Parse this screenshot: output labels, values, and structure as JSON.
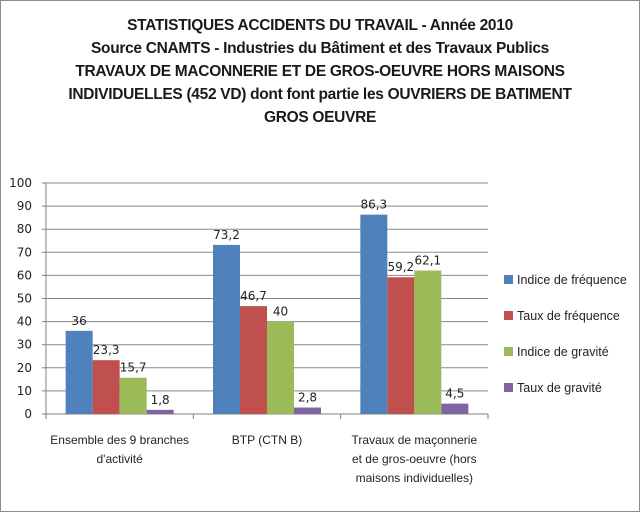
{
  "chart_data": {
    "type": "bar",
    "title_lines": [
      "STATISTIQUES ACCIDENTS DU TRAVAIL - Année 2010",
      "Source CNAMTS - Industries du Bâtiment et des Travaux Publics",
      "TRAVAUX DE MACONNERIE ET DE GROS-OEUVRE HORS MAISONS",
      "INDIVIDUELLES (452 VD) dont font partie les OUVRIERS DE BATIMENT",
      "GROS OEUVRE"
    ],
    "categories": [
      [
        "Ensemble des 9 branches",
        "d'activité"
      ],
      [
        "BTP (CTN B)"
      ],
      [
        "Travaux de maçonnerie",
        "et de gros-oeuvre (hors",
        "maisons individuelles)"
      ]
    ],
    "series": [
      {
        "name": "Indice de fréquence",
        "color": "#4f81bd",
        "values": [
          36,
          73.2,
          86.3
        ],
        "labels": [
          "36",
          "73,2",
          "86,3"
        ]
      },
      {
        "name": "Taux de fréquence",
        "color": "#c0504d",
        "values": [
          23.3,
          46.7,
          59.2
        ],
        "labels": [
          "23,3",
          "46,7",
          "59,2"
        ]
      },
      {
        "name": "Indice de gravité",
        "color": "#9bbb59",
        "values": [
          15.7,
          40,
          62.1
        ],
        "labels": [
          "15,7",
          "40",
          "62,1"
        ]
      },
      {
        "name": "Taux de gravité",
        "color": "#8064a2",
        "values": [
          1.8,
          2.8,
          4.5
        ],
        "labels": [
          "1,8",
          "2,8",
          "4,5"
        ]
      }
    ],
    "y_ticks": [
      "0",
      "10",
      "20",
      "30",
      "40",
      "50",
      "60",
      "70",
      "80",
      "90",
      "100"
    ],
    "ylim": [
      0,
      100
    ],
    "grid": true,
    "legend_position": "right",
    "xlabel": "",
    "ylabel": ""
  }
}
